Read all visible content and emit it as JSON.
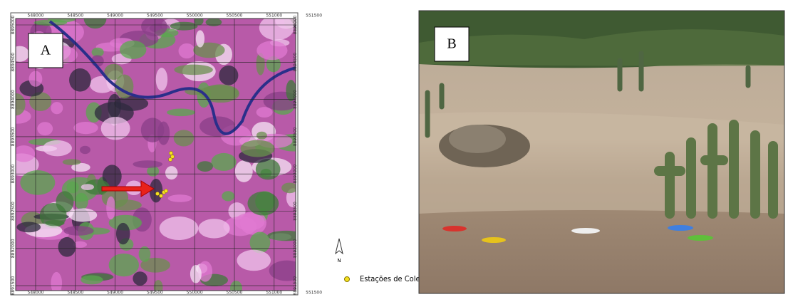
{
  "map": {
    "panel_label": "A",
    "x_ticks": [
      "548000",
      "548500",
      "549000",
      "549500",
      "550000",
      "550500",
      "551000",
      "551500"
    ],
    "y_ticks": [
      "8895000",
      "8894500",
      "8894000",
      "8893500",
      "8893000",
      "8892500",
      "8892000",
      "8891500"
    ]
  },
  "north_label": "N",
  "legend": {
    "label": "Estações de Coleta"
  },
  "photo": {
    "panel_label": "B"
  }
}
